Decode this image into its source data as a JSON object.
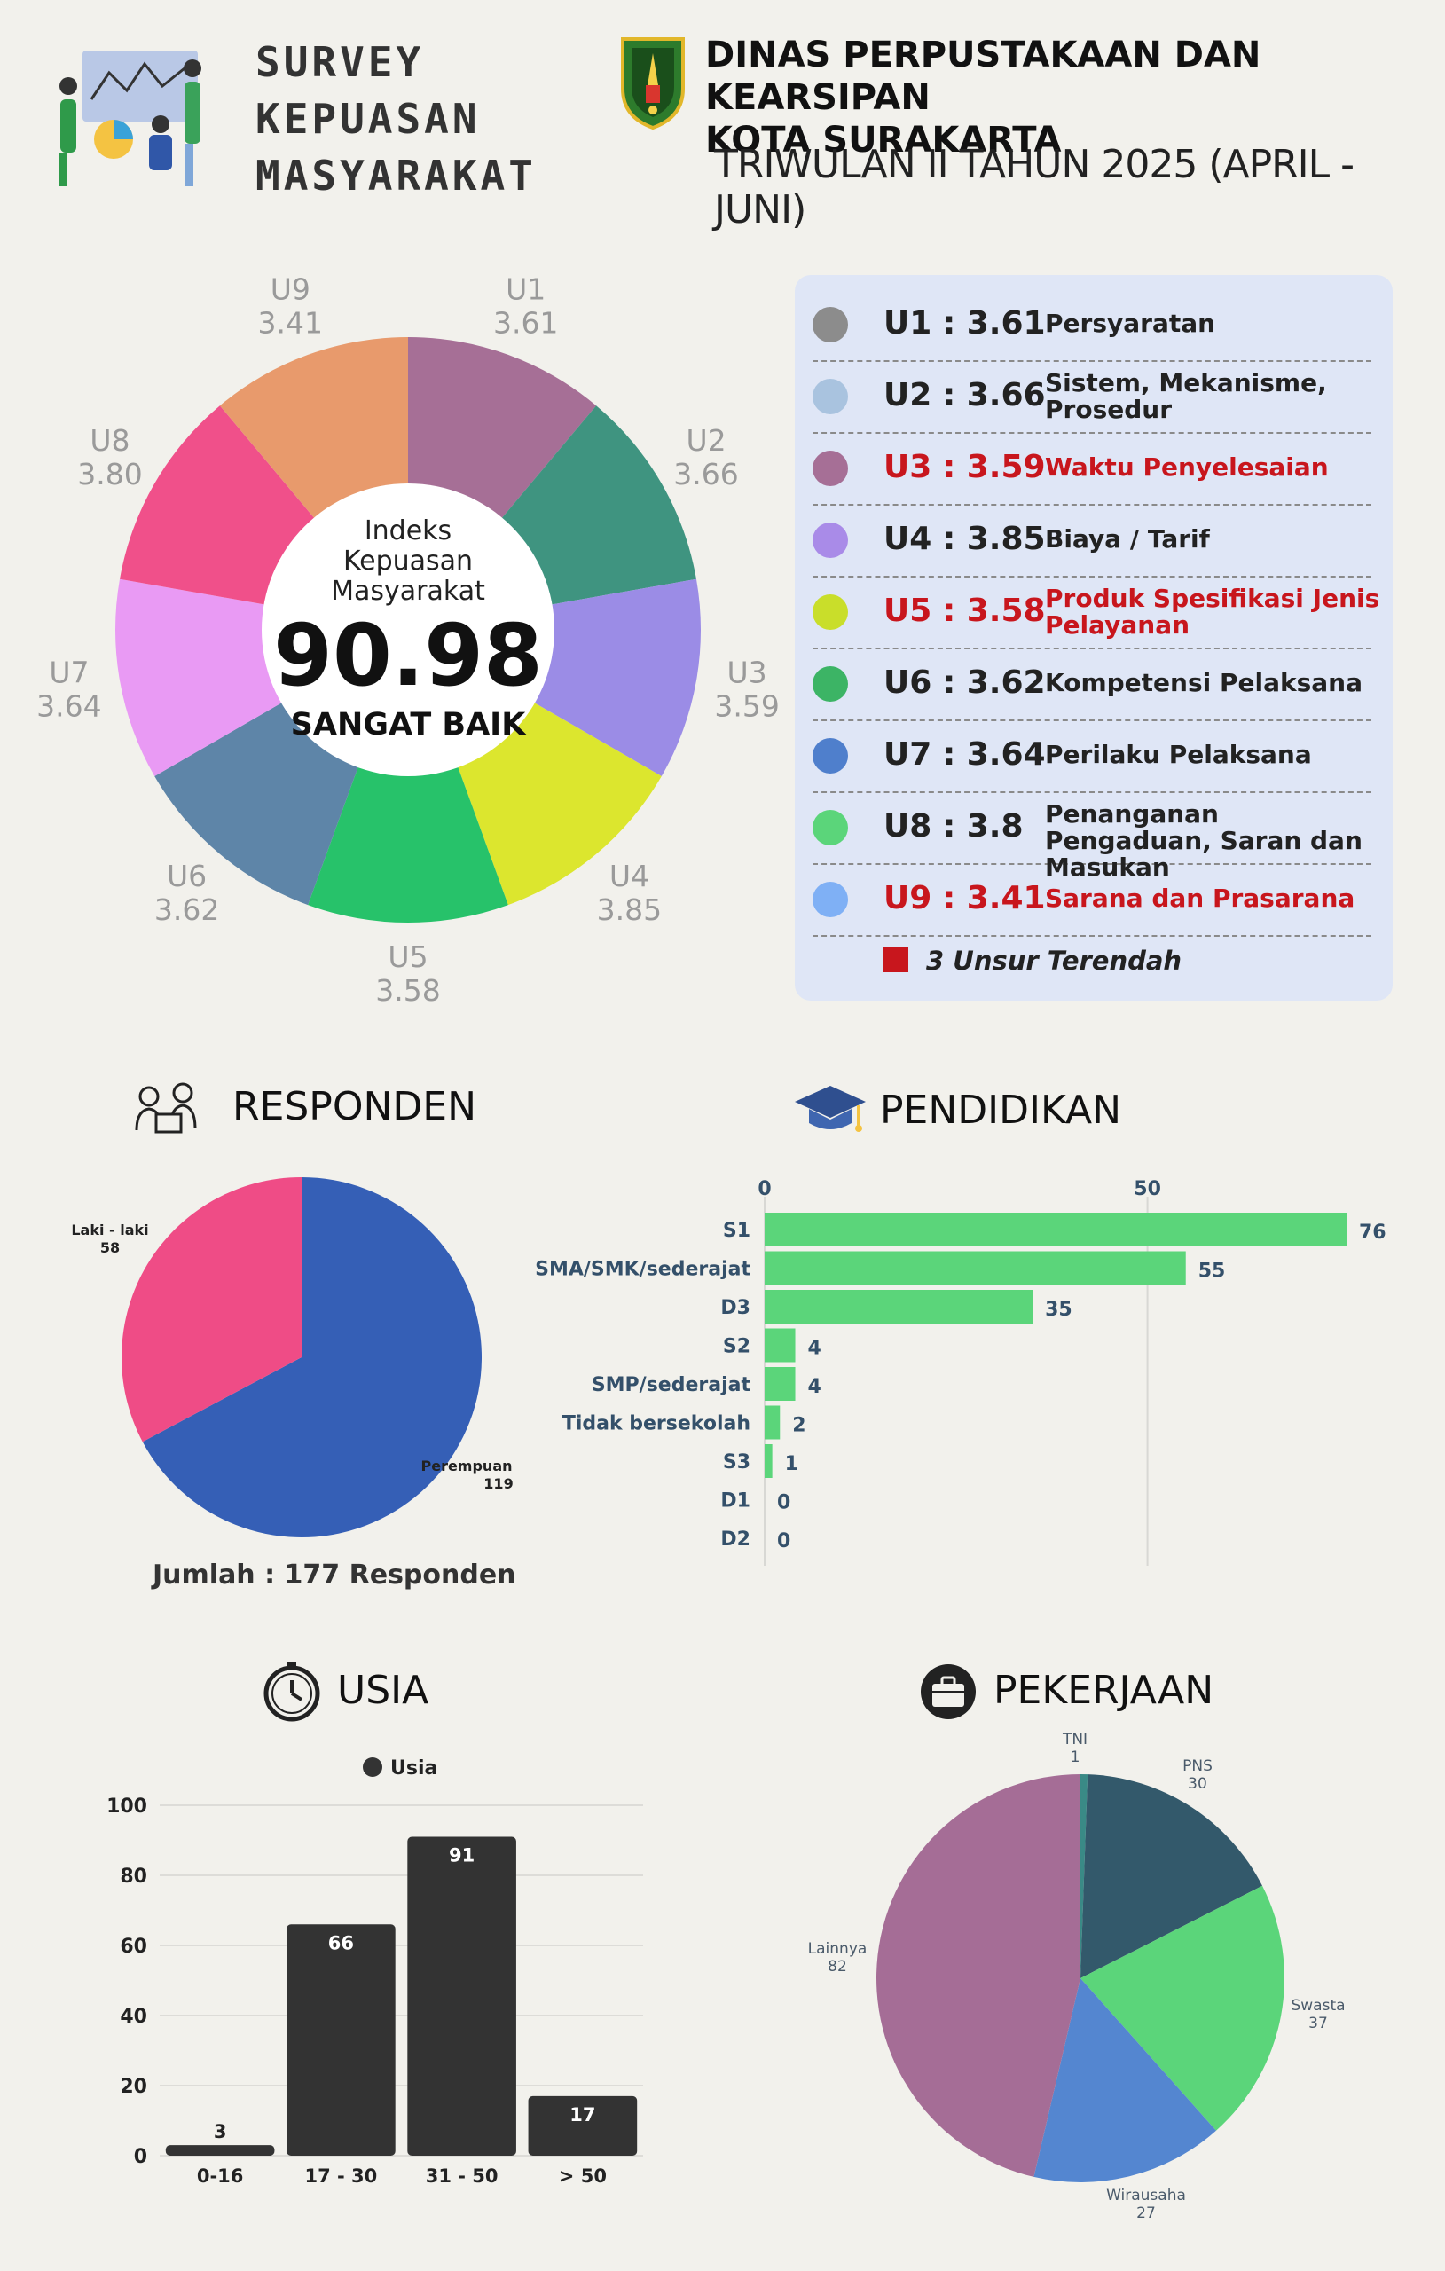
{
  "header": {
    "title_lines": [
      "SURVEY",
      "KEPUASAN",
      "MASYARAKAT"
    ],
    "org_lines": [
      "DINAS PERPUSTAKAAN DAN KEARSIPAN",
      "KOTA SURAKARTA"
    ],
    "period": "TRIWULAN II TAHUN 2025 (APRIL - JUNI)"
  },
  "index": {
    "label_lines": [
      "Indeks",
      "Kepuasan",
      "Masyarakat"
    ],
    "value": "90.98",
    "category": "SANGAT BAIK"
  },
  "unsur_legend": [
    {
      "code": "U1",
      "value": "3.61",
      "text": "U1 : 3.61",
      "label": "Persyaratan",
      "lowest": false,
      "color": "#8c8c8c"
    },
    {
      "code": "U2",
      "value": "3.66",
      "text": "U2 : 3.66",
      "label": "Sistem, Mekanisme, Prosedur",
      "lowest": false,
      "color": "#a9c3df"
    },
    {
      "code": "U3",
      "value": "3.59",
      "text": "U3 : 3.59",
      "label": "Waktu Penyelesaian",
      "lowest": true,
      "color": "#a66f96"
    },
    {
      "code": "U4",
      "value": "3.85",
      "text": "U4 : 3.85",
      "label": "Biaya / Tarif",
      "lowest": false,
      "color": "#a98be8"
    },
    {
      "code": "U5",
      "value": "3.58",
      "text": "U5 : 3.58",
      "label": "Produk Spesifikasi Jenis Pelayanan",
      "lowest": true,
      "color": "#c9de2a"
    },
    {
      "code": "U6",
      "value": "3.62",
      "text": "U6 : 3.62",
      "label": "Kompetensi Pelaksana",
      "lowest": false,
      "color": "#3cb465"
    },
    {
      "code": "U7",
      "value": "3.64",
      "text": "U7 : 3.64",
      "label": "Perilaku Pelaksana",
      "lowest": false,
      "color": "#4f7fcc"
    },
    {
      "code": "U8",
      "value": "3.8",
      "text": "U8 : 3.8",
      "label": "Penanganan Pengaduan, Saran dan Masukan",
      "lowest": false,
      "color": "#5bd57a"
    },
    {
      "code": "U9",
      "value": "3.41",
      "text": "U9 : 3.41",
      "label": "Sarana dan Prasarana",
      "lowest": true,
      "color": "#7fb0f5"
    }
  ],
  "lowest_note": "3 Unsur Terendah",
  "accent_lowest_color": "#c8161d",
  "sections": {
    "responden": "RESPONDEN",
    "pendidikan": "PENDIDIKAN",
    "usia": "USIA",
    "pekerjaan": "PEKERJAAN"
  },
  "responden_total": "Jumlah : 177 Responden",
  "chart_data": [
    {
      "type": "pie",
      "subtype": "donut",
      "categories": [
        "U1",
        "U2",
        "U3",
        "U4",
        "U5",
        "U6",
        "U7",
        "U8",
        "U9"
      ],
      "values": [
        3.61,
        3.66,
        3.59,
        3.85,
        3.58,
        3.62,
        3.64,
        3.8,
        3.41
      ],
      "value_labels": [
        "3.61",
        "3.66",
        "3.59",
        "3.85",
        "3.58",
        "3.62",
        "3.64",
        "3.80",
        "3.41"
      ],
      "colors": [
        "#a66f96",
        "#3f9480",
        "#9b8ce6",
        "#dce62e",
        "#27c26a",
        "#5e85a8",
        "#e99af4",
        "#f0508a",
        "#e89a6c"
      ]
    },
    {
      "type": "pie",
      "categories": [
        "Perempuan",
        "Laki - laki"
      ],
      "values": [
        119,
        58
      ],
      "colors": [
        "#355fb6",
        "#ef4c86"
      ]
    },
    {
      "type": "bar",
      "orientation": "horizontal",
      "categories": [
        "S1",
        "SMA/SMK/sederajat",
        "D3",
        "S2",
        "SMP/sederajat",
        "Tidak bersekolah",
        "S3",
        "D1",
        "D2"
      ],
      "values": [
        76,
        55,
        35,
        4,
        4,
        2,
        1,
        0,
        0
      ],
      "xticks": [
        0,
        50
      ],
      "xlim": [
        0,
        76
      ],
      "color": "#5bd57a",
      "grid": true
    },
    {
      "type": "bar",
      "categories": [
        "0-16",
        "17 - 30",
        "31 - 50",
        "> 50"
      ],
      "series": [
        {
          "name": "Usia",
          "values": [
            3,
            66,
            91,
            17
          ]
        }
      ],
      "ylim": [
        0,
        100
      ],
      "yticks": [
        0,
        20,
        40,
        60,
        80,
        100
      ],
      "legend": "top",
      "color": "#333333",
      "grid": true
    },
    {
      "type": "pie",
      "categories": [
        "TNI",
        "PNS",
        "Swasta",
        "Wirausaha",
        "Lainnya"
      ],
      "values": [
        1,
        30,
        37,
        27,
        82
      ],
      "colors": [
        "#3a8a86",
        "#33596b",
        "#5bd57a",
        "#5486d0",
        "#a56d96"
      ]
    }
  ]
}
